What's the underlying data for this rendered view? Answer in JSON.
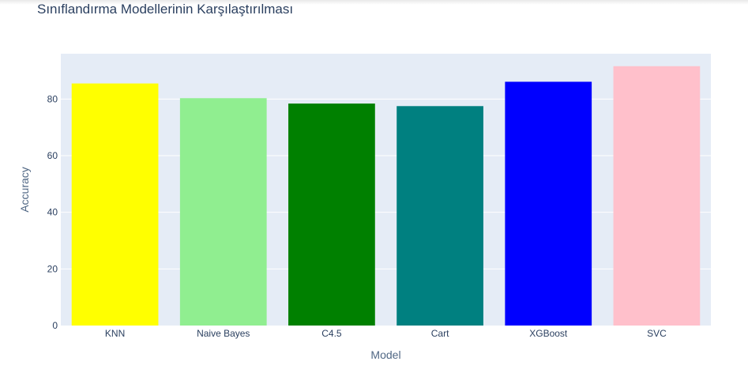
{
  "chart_data": {
    "type": "bar",
    "title": "Sınıflandırma Modellerinin Karşılaştırılması",
    "xlabel": "Model",
    "ylabel": "Accuracy",
    "categories": [
      "KNN",
      "Naive Bayes",
      "C4.5",
      "Cart",
      "XGBoost",
      "SVC"
    ],
    "values": [
      85.5,
      80.3,
      78.4,
      77.5,
      86.1,
      91.6
    ],
    "colors": [
      "#ffff00",
      "#90ee90",
      "#008000",
      "#008080",
      "#0000ff",
      "#ffc0cb"
    ],
    "ylim": [
      0,
      96
    ],
    "yticks": [
      0,
      20,
      40,
      60,
      80
    ],
    "grid": true,
    "plot_bg": "#e5ecf6"
  }
}
